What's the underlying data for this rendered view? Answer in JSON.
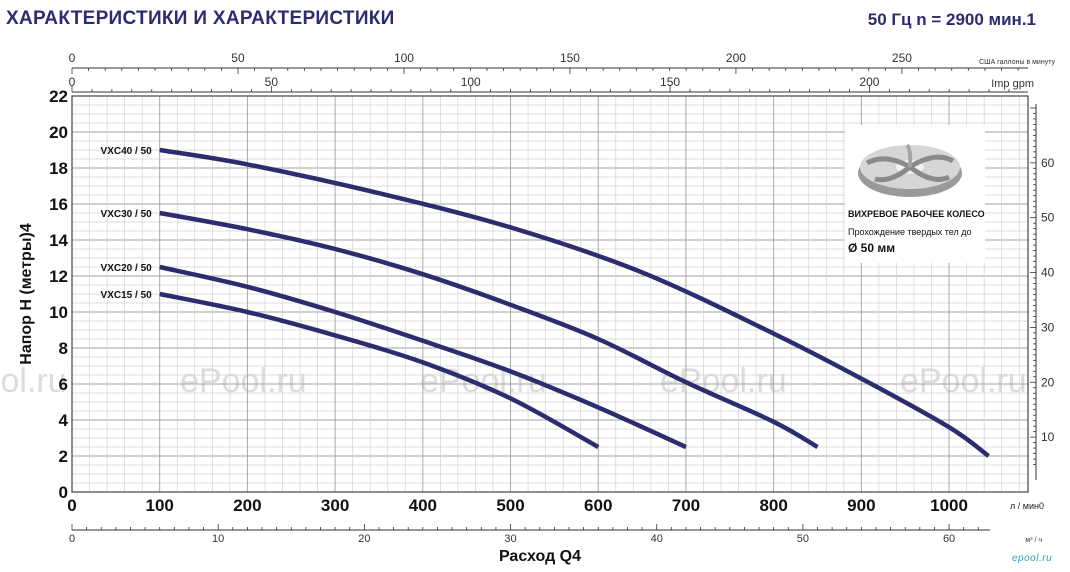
{
  "header": {
    "title": "ХАРАКТЕРИСТИКИ И ХАРАКТЕРИСТИКИ",
    "frequency": "50 Гц n = 2900 мин.1"
  },
  "inset": {
    "caption_title": "ВИХРЕВОЕ РАБОЧЕЕ КОЛЕСО",
    "caption_text": "Прохождение твердых тел до",
    "caption_size": "Ø 50 мм"
  },
  "watermark": "ePool.ru",
  "brand": "epool.ru",
  "chart_data": {
    "type": "line",
    "xlabel": "Расход Q4",
    "ylabel": "Напор Н (метры)4",
    "x_unit_label": "л / мин0",
    "xlim": [
      0,
      1090
    ],
    "ylim": [
      0,
      22
    ],
    "grid": true,
    "x_ticks": [
      0,
      100,
      200,
      300,
      400,
      500,
      600,
      700,
      800,
      900,
      1000
    ],
    "y_ticks": [
      0,
      2,
      4,
      6,
      8,
      10,
      12,
      14,
      16,
      18,
      20,
      22
    ],
    "secondary_axes": {
      "bottom_m3h": {
        "label": "м³ / ч",
        "ticks": [
          0,
          10,
          20,
          30,
          40,
          50,
          60
        ]
      },
      "top_us_gpm": {
        "label": "США галлоны в минуту",
        "ticks": [
          0,
          50,
          100,
          150,
          200,
          250
        ]
      },
      "top_imp_gpm": {
        "label": "Imp gpm",
        "ticks": [
          0,
          50,
          100,
          150,
          200
        ]
      },
      "right_ft": {
        "ticks": [
          10,
          20,
          30,
          40,
          50,
          60
        ]
      }
    },
    "series": [
      {
        "name": "VXC40 / 50",
        "x": [
          100,
          200,
          350,
          500,
          650,
          800,
          900,
          1000,
          1045
        ],
        "y": [
          19.0,
          18.2,
          16.6,
          14.7,
          12.2,
          8.8,
          6.3,
          3.6,
          2.0
        ]
      },
      {
        "name": "VXC30 / 50",
        "x": [
          100,
          200,
          300,
          400,
          500,
          600,
          700,
          800,
          850
        ],
        "y": [
          15.5,
          14.6,
          13.5,
          12.1,
          10.4,
          8.5,
          6.1,
          3.9,
          2.5
        ]
      },
      {
        "name": "VXC20 / 50",
        "x": [
          100,
          200,
          300,
          400,
          500,
          600,
          700
        ],
        "y": [
          12.5,
          11.4,
          10.0,
          8.4,
          6.7,
          4.7,
          2.5
        ]
      },
      {
        "name": "VXC15 / 50",
        "x": [
          100,
          200,
          300,
          400,
          500,
          600
        ],
        "y": [
          11.0,
          10.0,
          8.7,
          7.2,
          5.2,
          2.5
        ]
      }
    ]
  }
}
